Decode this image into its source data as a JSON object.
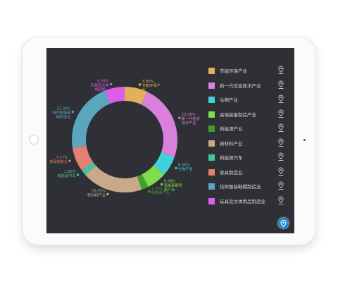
{
  "chart_data": {
    "type": "pie",
    "donut": true,
    "categories": [
      "节能环保产业",
      "新一代信息技术产业",
      "生物产业",
      "高端装备制造产业",
      "新能源产业",
      "新材料产业",
      "新能源汽车",
      "家具制造业",
      "纺织服装鞋帽制造业",
      "玩具及文体用品制造业"
    ],
    "values": [
      7.05,
      23.26,
      6.2,
      6.06,
      2.1,
      18.55,
      1.86,
      7.27,
      21.39,
      6.09
    ],
    "value_labels": [
      "7.05%",
      "23.26%",
      "6.20%",
      "6.06%",
      "2.10%",
      "18.55%",
      "1.86%",
      "7.27%",
      "21.39%",
      "6.09%"
    ],
    "colors": [
      "#e0b15a",
      "#d97fdc",
      "#3fd2dc",
      "#80dc4c",
      "#3f9f2c",
      "#c9a98a",
      "#43c49a",
      "#e47f73",
      "#5aa6bf",
      "#db5fe8"
    ],
    "slice_labels": [
      [
        "节能环保产",
        "业"
      ],
      [
        "新一代信息",
        "技术产业"
      ],
      [
        "生物产业"
      ],
      [
        "高端装备制",
        "造产业"
      ],
      [
        "新能源产业"
      ],
      [
        "新材料产业"
      ],
      [
        "新能源汽车"
      ],
      [
        "家具制造业"
      ],
      [
        "纺织服装鞋",
        "帽制造业"
      ],
      [
        "玩具及文体",
        "用品制..."
      ]
    ],
    "legend_position": "right"
  },
  "legend_icon": "location-pin-icon",
  "locate_button_icon": "location-pin-icon",
  "accent_color": "#1e88d9"
}
